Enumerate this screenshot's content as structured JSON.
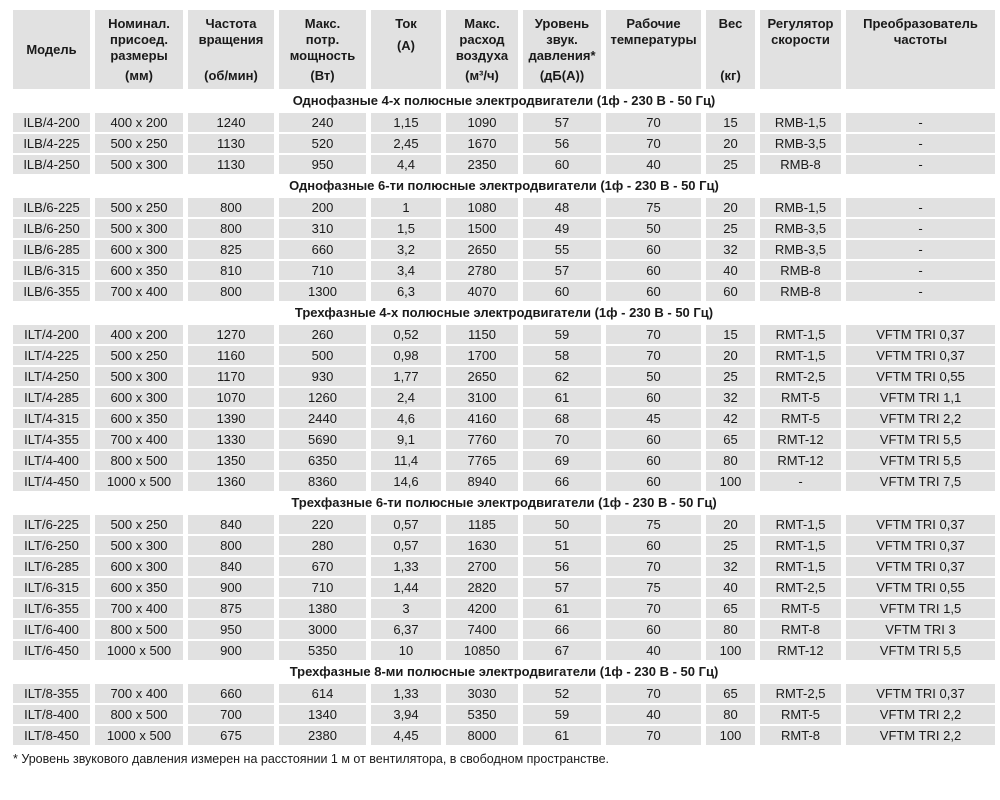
{
  "table": {
    "columns": [
      {
        "key": "model",
        "lines": [
          "Модель"
        ],
        "unit": ""
      },
      {
        "key": "dimensions",
        "lines": [
          "Номинал.",
          "присоед.",
          "размеры"
        ],
        "unit": "(мм)"
      },
      {
        "key": "rpm",
        "lines": [
          "Частота",
          "вращения"
        ],
        "unit": "(об/мин)"
      },
      {
        "key": "power",
        "lines": [
          "Макс.",
          "потр.",
          "мощность"
        ],
        "unit": "(Вт)"
      },
      {
        "key": "current",
        "lines": [
          "Ток"
        ],
        "unit": "(А)"
      },
      {
        "key": "airflow",
        "lines": [
          "Макс.",
          "расход",
          "воздуха"
        ],
        "unit": "(м³/ч)"
      },
      {
        "key": "sound-level",
        "lines": [
          "Уровень",
          "звук.",
          "давления*"
        ],
        "unit": "(дБ(А))"
      },
      {
        "key": "temperature",
        "lines": [
          "Рабочие",
          "температуры"
        ],
        "unit": ""
      },
      {
        "key": "weight",
        "lines": [
          "Вес"
        ],
        "unit": "(кг)"
      },
      {
        "key": "regulator",
        "lines": [
          "Регулятор",
          "скорости"
        ],
        "unit": ""
      },
      {
        "key": "converter",
        "lines": [
          "Преобразователь",
          "частоты"
        ],
        "unit": ""
      }
    ],
    "sections": [
      {
        "title": "Однофазные 4-х полюсные электродвигатели (1ф - 230 В - 50 Гц)",
        "rows": [
          [
            "ILB/4-200",
            "400 x 200",
            "1240",
            "240",
            "1,15",
            "1090",
            "57",
            "70",
            "15",
            "RMB-1,5",
            "-"
          ],
          [
            "ILB/4-225",
            "500 x 250",
            "1130",
            "520",
            "2,45",
            "1670",
            "56",
            "70",
            "20",
            "RMB-3,5",
            "-"
          ],
          [
            "ILB/4-250",
            "500 x 300",
            "1130",
            "950",
            "4,4",
            "2350",
            "60",
            "40",
            "25",
            "RMB-8",
            "-"
          ]
        ]
      },
      {
        "title": "Однофазные 6-ти полюсные электродвигатели (1ф - 230 В - 50 Гц)",
        "rows": [
          [
            "ILB/6-225",
            "500 x 250",
            "800",
            "200",
            "1",
            "1080",
            "48",
            "75",
            "20",
            "RMB-1,5",
            "-"
          ],
          [
            "ILB/6-250",
            "500 x 300",
            "800",
            "310",
            "1,5",
            "1500",
            "49",
            "50",
            "25",
            "RMB-3,5",
            "-"
          ],
          [
            "ILB/6-285",
            "600 x 300",
            "825",
            "660",
            "3,2",
            "2650",
            "55",
            "60",
            "32",
            "RMB-3,5",
            "-"
          ],
          [
            "ILB/6-315",
            "600 x 350",
            "810",
            "710",
            "3,4",
            "2780",
            "57",
            "60",
            "40",
            "RMB-8",
            "-"
          ],
          [
            "ILB/6-355",
            "700 x 400",
            "800",
            "1300",
            "6,3",
            "4070",
            "60",
            "60",
            "60",
            "RMB-8",
            "-"
          ]
        ]
      },
      {
        "title": "Трехфазные 4-х полюсные электродвигатели (1ф - 230 В - 50 Гц)",
        "rows": [
          [
            "ILT/4-200",
            "400 x 200",
            "1270",
            "260",
            "0,52",
            "1150",
            "59",
            "70",
            "15",
            "RMT-1,5",
            "VFTM TRI 0,37"
          ],
          [
            "ILT/4-225",
            "500 x 250",
            "1160",
            "500",
            "0,98",
            "1700",
            "58",
            "70",
            "20",
            "RMT-1,5",
            "VFTM TRI 0,37"
          ],
          [
            "ILT/4-250",
            "500 x 300",
            "1170",
            "930",
            "1,77",
            "2650",
            "62",
            "50",
            "25",
            "RMT-2,5",
            "VFTM TRI 0,55"
          ],
          [
            "ILT/4-285",
            "600 x 300",
            "1070",
            "1260",
            "2,4",
            "3100",
            "61",
            "60",
            "32",
            "RMT-5",
            "VFTM TRI 1,1"
          ],
          [
            "ILT/4-315",
            "600 x 350",
            "1390",
            "2440",
            "4,6",
            "4160",
            "68",
            "45",
            "42",
            "RMT-5",
            "VFTM TRI 2,2"
          ],
          [
            "ILT/4-355",
            "700 x 400",
            "1330",
            "5690",
            "9,1",
            "7760",
            "70",
            "60",
            "65",
            "RMT-12",
            "VFTM TRI 5,5"
          ],
          [
            "ILT/4-400",
            "800 x 500",
            "1350",
            "6350",
            "11,4",
            "7765",
            "69",
            "60",
            "80",
            "RMT-12",
            "VFTM TRI 5,5"
          ],
          [
            "ILT/4-450",
            "1000 x 500",
            "1360",
            "8360",
            "14,6",
            "8940",
            "66",
            "60",
            "100",
            "-",
            "VFTM TRI 7,5"
          ]
        ]
      },
      {
        "title": "Трехфазные 6-ти полюсные электродвигатели (1ф - 230 В - 50 Гц)",
        "rows": [
          [
            "ILT/6-225",
            "500 x 250",
            "840",
            "220",
            "0,57",
            "1185",
            "50",
            "75",
            "20",
            "RMT-1,5",
            "VFTM TRI 0,37"
          ],
          [
            "ILT/6-250",
            "500 x 300",
            "800",
            "280",
            "0,57",
            "1630",
            "51",
            "60",
            "25",
            "RMT-1,5",
            "VFTM TRI 0,37"
          ],
          [
            "ILT/6-285",
            "600 x 300",
            "840",
            "670",
            "1,33",
            "2700",
            "56",
            "70",
            "32",
            "RMT-1,5",
            "VFTM TRI 0,37"
          ],
          [
            "ILT/6-315",
            "600 x 350",
            "900",
            "710",
            "1,44",
            "2820",
            "57",
            "75",
            "40",
            "RMT-2,5",
            "VFTM TRI 0,55"
          ],
          [
            "ILT/6-355",
            "700 x 400",
            "875",
            "1380",
            "3",
            "4200",
            "61",
            "70",
            "65",
            "RMT-5",
            "VFTM TRI 1,5"
          ],
          [
            "ILT/6-400",
            "800 x 500",
            "950",
            "3000",
            "6,37",
            "7400",
            "66",
            "60",
            "80",
            "RMT-8",
            "VFTM TRI 3"
          ],
          [
            "ILT/6-450",
            "1000 x 500",
            "900",
            "5350",
            "10",
            "10850",
            "67",
            "40",
            "100",
            "RMT-12",
            "VFTM TRI 5,5"
          ]
        ]
      },
      {
        "title": "Трехфазные 8-ми полюсные электродвигатели (1ф - 230 В - 50 Гц)",
        "rows": [
          [
            "ILT/8-355",
            "700 x 400",
            "660",
            "614",
            "1,33",
            "3030",
            "52",
            "70",
            "65",
            "RMT-2,5",
            "VFTM TRI 0,37"
          ],
          [
            "ILT/8-400",
            "800 x 500",
            "700",
            "1340",
            "3,94",
            "5350",
            "59",
            "40",
            "80",
            "RMT-5",
            "VFTM TRI 2,2"
          ],
          [
            "ILT/8-450",
            "1000 x 500",
            "675",
            "2380",
            "4,45",
            "8000",
            "61",
            "70",
            "100",
            "RMT-8",
            "VFTM TRI 2,2"
          ]
        ]
      }
    ],
    "footnote": "* Уровень звукового давления измерен на расстоянии 1 м от вентилятора, в свободном пространстве."
  }
}
